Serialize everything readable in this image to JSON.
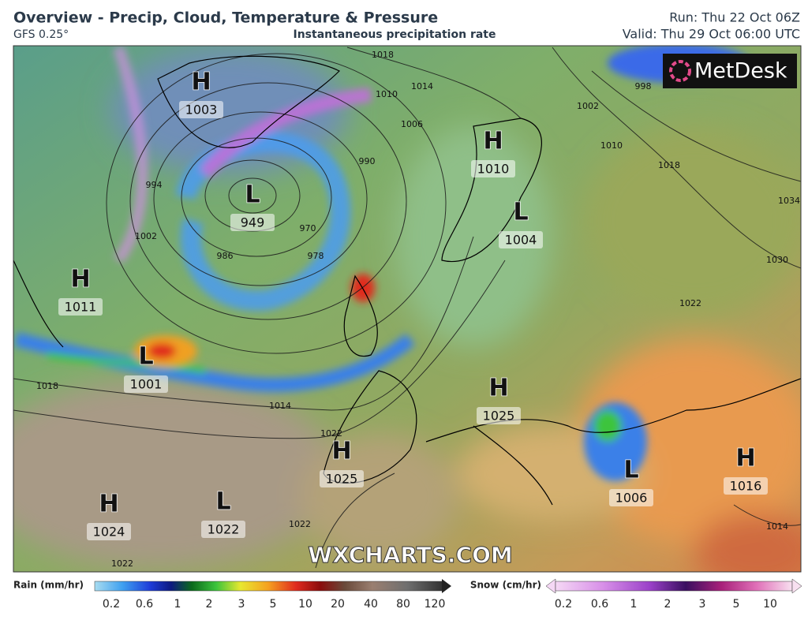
{
  "header": {
    "title": "Overview - Precip, Cloud, Temperature & Pressure",
    "model": "GFS 0.25°",
    "subtitle": "Instantaneous precipitation rate",
    "run": "Run: Thu 22 Oct 06Z",
    "valid": "Valid: Thu 29 Oct 06:00 UTC"
  },
  "logo": "MetDesk",
  "watermark": "WXCHARTS.COM",
  "pressure_centers": [
    {
      "type": "H",
      "value": "1003"
    },
    {
      "type": "L",
      "value": "949"
    },
    {
      "type": "H",
      "value": "1011"
    },
    {
      "type": "L",
      "value": "1001"
    },
    {
      "type": "H",
      "value": "1010"
    },
    {
      "type": "L",
      "value": "1004"
    },
    {
      "type": "H",
      "value": "1025"
    },
    {
      "type": "H",
      "value": "1025"
    },
    {
      "type": "H",
      "value": "1024"
    },
    {
      "type": "L",
      "value": "1022"
    },
    {
      "type": "L",
      "value": "1006"
    },
    {
      "type": "H",
      "value": "1016"
    }
  ],
  "isobar_labels": [
    "1018",
    "1014",
    "1010",
    "1006",
    "994",
    "1002",
    "986",
    "978",
    "970",
    "990",
    "1018",
    "1014",
    "1022",
    "1022",
    "1022",
    "1002",
    "1010",
    "1018",
    "1022",
    "1030",
    "1034",
    "1014",
    "998"
  ],
  "legend": {
    "rain": {
      "title": "Rain (mm/hr)",
      "labels": [
        "0.2",
        "0.6",
        "1",
        "2",
        "3",
        "5",
        "10",
        "20",
        "40",
        "80",
        "120"
      ]
    },
    "snow": {
      "title": "Snow (cm/hr)",
      "labels": [
        "0.2",
        "0.6",
        "1",
        "2",
        "3",
        "5",
        "10"
      ]
    }
  }
}
